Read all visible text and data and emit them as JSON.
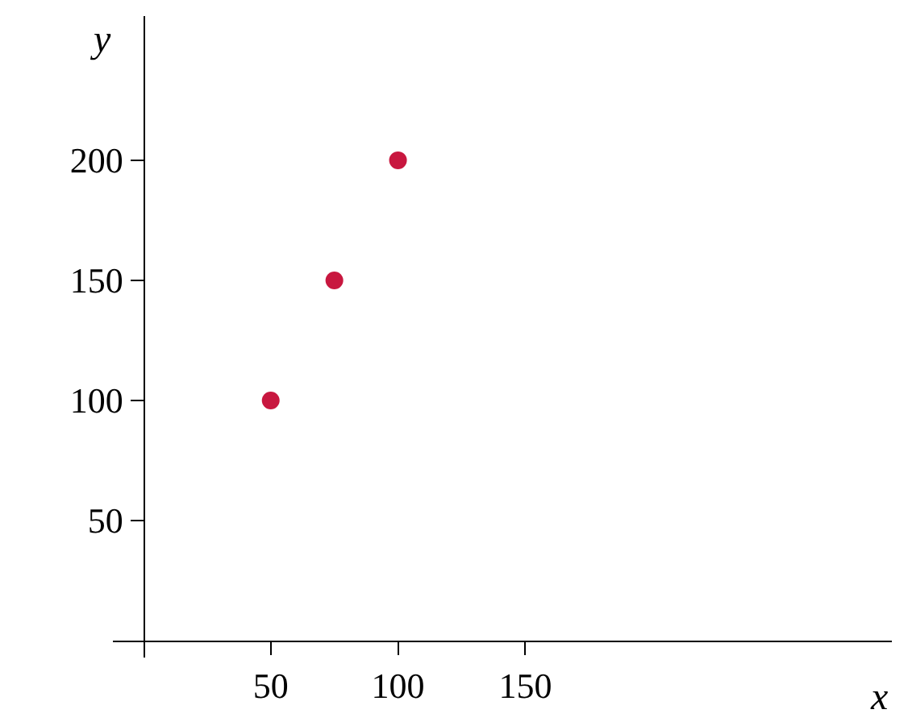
{
  "chart_data": {
    "type": "scatter",
    "xlabel": "x",
    "ylabel": "y",
    "x": [
      50,
      75,
      100
    ],
    "series": [
      {
        "color": "#c8173f",
        "values": [
          100,
          150,
          200
        ]
      }
    ],
    "xlim": [
      -12,
      294
    ],
    "ylim": [
      -7,
      260
    ],
    "xticks": [
      50,
      100,
      150
    ],
    "yticks": [
      50,
      100,
      150,
      200
    ],
    "marker": "circle",
    "grid": false,
    "legend": false
  }
}
